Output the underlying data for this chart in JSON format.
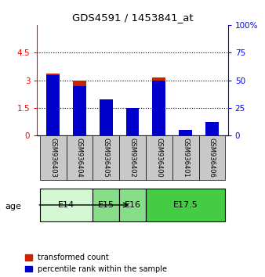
{
  "title": "GDS4591 / 1453841_at",
  "samples": [
    "GSM936403",
    "GSM936404",
    "GSM936405",
    "GSM936402",
    "GSM936400",
    "GSM936401",
    "GSM936406"
  ],
  "transformed_count": [
    3.38,
    3.0,
    1.38,
    1.28,
    3.15,
    0.04,
    0.12
  ],
  "percentile_rank_pct": [
    55,
    45,
    33,
    25,
    50,
    5,
    12
  ],
  "ylim_left": [
    0,
    6
  ],
  "ylim_right": [
    0,
    100
  ],
  "yticks_left": [
    0,
    1.5,
    3.0,
    4.5
  ],
  "yticks_right": [
    0,
    25,
    50,
    75,
    100
  ],
  "ytick_labels_left": [
    "0",
    "1.5",
    "3",
    "4.5"
  ],
  "ytick_labels_right": [
    "0",
    "25",
    "50",
    "75",
    "100%"
  ],
  "age_groups": [
    {
      "label": "E14",
      "samples": [
        "GSM936403",
        "GSM936404"
      ],
      "color": "#d4f7d4"
    },
    {
      "label": "E15",
      "samples": [
        "GSM936405"
      ],
      "color": "#88dd88"
    },
    {
      "label": "E16",
      "samples": [
        "GSM936402"
      ],
      "color": "#88dd88"
    },
    {
      "label": "E17.5",
      "samples": [
        "GSM936400",
        "GSM936401",
        "GSM936406"
      ],
      "color": "#44cc44"
    }
  ],
  "bar_color_red": "#cc2200",
  "bar_color_blue": "#0000cc",
  "bar_width": 0.5,
  "background_plot": "white",
  "background_sample": "#c8c8c8"
}
